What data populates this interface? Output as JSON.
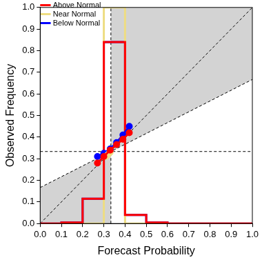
{
  "chart_data": {
    "type": "reliability",
    "xlabel": "Forecast Probability",
    "ylabel": "Observed Frequency",
    "xlim": [
      0,
      1
    ],
    "ylim": [
      0,
      1
    ],
    "xticks": [
      {
        "value": 0,
        "label": "0.0"
      },
      0.1,
      0.2,
      0.3,
      0.4,
      0.5,
      0.6,
      0.7,
      0.8,
      0.9,
      {
        "value": 1,
        "label": "1.0"
      }
    ],
    "yticks": [
      {
        "value": 0,
        "label": "0.0"
      },
      0.1,
      0.2,
      0.3,
      0.4,
      0.5,
      0.6,
      0.7,
      0.8,
      0.9,
      {
        "value": 1,
        "label": "1.0"
      }
    ],
    "grid": false,
    "legend": "upper left",
    "climatology": 0.3333,
    "diagonal": {
      "x": [
        0,
        1
      ],
      "y": [
        0,
        1
      ]
    },
    "no_skill": {
      "x": [
        0,
        1
      ],
      "y": [
        0.1667,
        0.6667
      ]
    },
    "bins": [
      0,
      0.1,
      0.2,
      0.3,
      0.4,
      0.5,
      0.6,
      0.7,
      0.8,
      0.9,
      1
    ],
    "series": [
      {
        "name": "Below Normal",
        "color": "#0000ff",
        "x": [
          0.27,
          0.3,
          0.33,
          0.36,
          0.39,
          0.42
        ],
        "values": [
          0.31,
          0.325,
          0.345,
          0.375,
          0.41,
          0.45
        ],
        "counts": [
          0,
          0.005,
          0.115,
          0.84,
          0.04,
          0.005,
          0,
          0,
          0,
          0
        ]
      },
      {
        "name": "Near Normal",
        "color": "#eedd82",
        "x": [
          0.31,
          0.32,
          0.33
        ],
        "values": [
          0.31,
          0.32,
          0.33
        ],
        "counts": [
          0,
          0,
          0,
          1.0,
          0,
          0,
          0,
          0,
          0,
          0
        ]
      },
      {
        "name": "Above Normal",
        "color": "#ff0000",
        "x": [
          0.27,
          0.3,
          0.33,
          0.36,
          0.39,
          0.42
        ],
        "values": [
          0.28,
          0.31,
          0.34,
          0.365,
          0.39,
          0.42
        ],
        "counts": [
          0,
          0.005,
          0.115,
          0.84,
          0.04,
          0.005,
          0,
          0,
          0,
          0
        ]
      }
    ]
  }
}
